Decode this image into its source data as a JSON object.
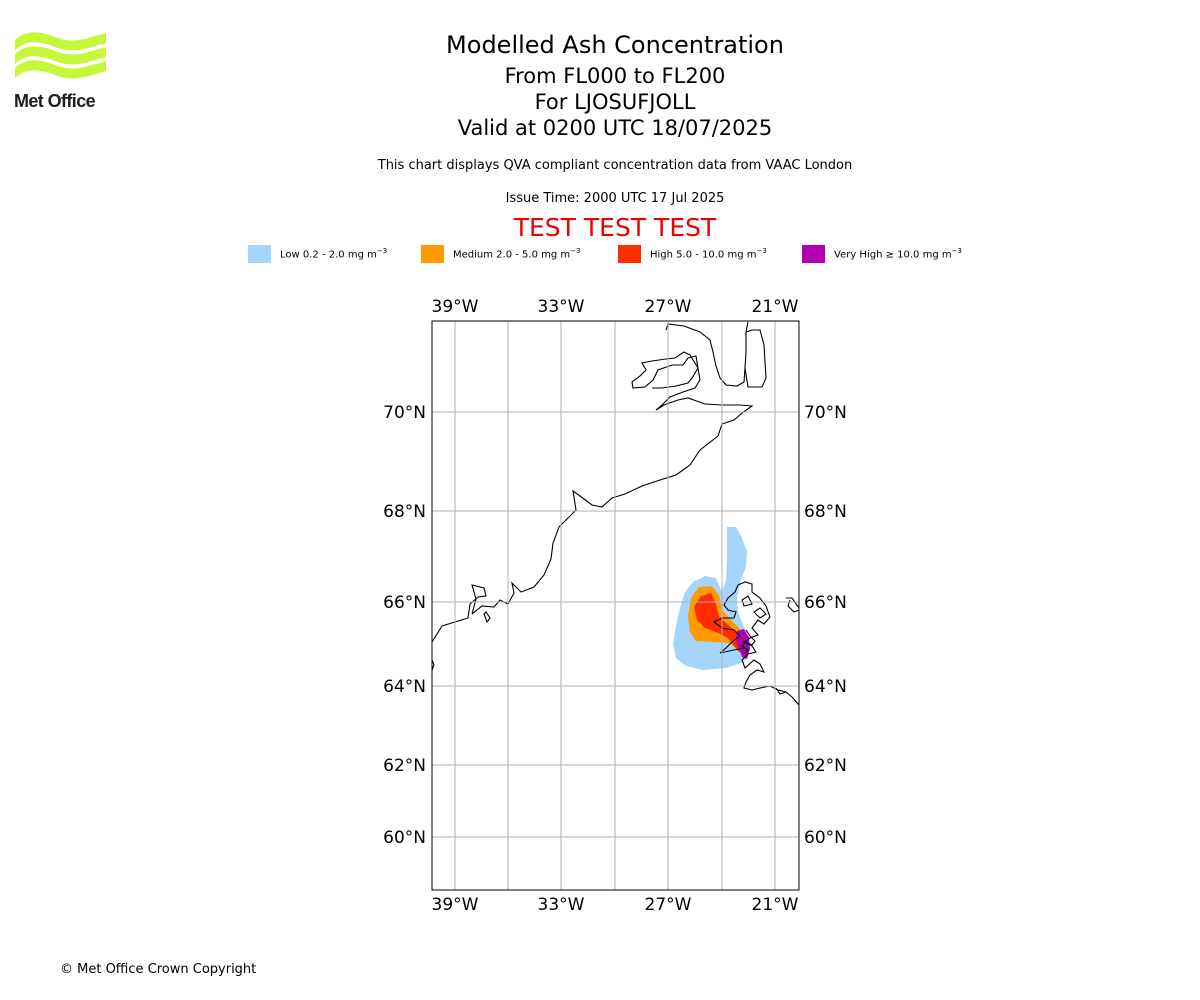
{
  "brand": {
    "name": "Met Office",
    "logo_color": "#c7f73a"
  },
  "header": {
    "title": "Modelled Ash Concentration",
    "level_range": "From FL000 to FL200",
    "volcano": "For LJOSUFJOLL",
    "valid_time": "Valid at 0200 UTC 18/07/2025",
    "description": "This chart displays QVA compliant concentration data from VAAC London",
    "issue_time": "Issue Time: 2000 UTC 17 Jul 2025",
    "test_banner": "TEST TEST TEST"
  },
  "legend": [
    {
      "label": "Low 0.2 - 2.0 mg m",
      "unit_exp": "−3",
      "color": "#a5d5fb"
    },
    {
      "label": "Medium 2.0 - 5.0 mg m",
      "unit_exp": "−3",
      "color": "#ff9a00"
    },
    {
      "label": "High 5.0 - 10.0 mg m",
      "unit_exp": "−3",
      "color": "#ff2d00"
    },
    {
      "label": "Very High  ≥  10.0 mg m",
      "unit_exp": "−3",
      "color": "#b000b2"
    }
  ],
  "map": {
    "lon_labels": [
      "39°W",
      "33°W",
      "27°W",
      "21°W"
    ],
    "lat_labels": [
      "70°N",
      "68°N",
      "66°N",
      "64°N",
      "62°N",
      "60°N"
    ],
    "gridline_color": "#b0b0b0",
    "coastline_color": "#000000"
  },
  "footer": {
    "copyright": "© Met Office Crown Copyright"
  }
}
